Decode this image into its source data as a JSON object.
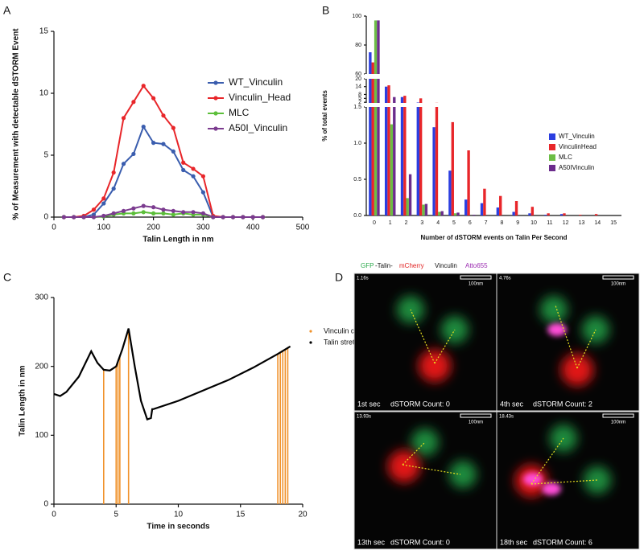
{
  "panel_labels": [
    "A",
    "B",
    "C",
    "D"
  ],
  "chart_data": [
    {
      "type": "line",
      "xlabel": "Talin Length in nm",
      "ylabel": "% of Measurement with detectable dSTORM Event",
      "x": [
        20,
        40,
        60,
        80,
        100,
        120,
        140,
        160,
        180,
        200,
        220,
        240,
        260,
        280,
        300,
        320,
        340,
        360,
        380,
        400,
        420
      ],
      "series": [
        {
          "name": "WT_Vinculin",
          "color": "#3a5dae",
          "values": [
            0,
            0,
            0,
            0.2,
            1.1,
            2.3,
            4.3,
            5.1,
            7.3,
            6.0,
            5.9,
            5.3,
            3.8,
            3.3,
            2.0,
            0,
            0,
            0,
            0,
            0,
            0
          ]
        },
        {
          "name": "Vinculin_Head",
          "color": "#e8262a",
          "values": [
            0,
            0,
            0.1,
            0.6,
            1.5,
            3.6,
            8.0,
            9.3,
            10.6,
            9.6,
            8.2,
            7.2,
            4.4,
            3.9,
            3.3,
            0.1,
            0,
            0,
            0,
            0,
            0
          ]
        },
        {
          "name": "MLC",
          "color": "#5cbf3a",
          "values": [
            0,
            0,
            0,
            0,
            0.05,
            0.2,
            0.3,
            0.3,
            0.4,
            0.3,
            0.3,
            0.2,
            0.3,
            0.2,
            0.2,
            0,
            0,
            0,
            0,
            0,
            0
          ]
        },
        {
          "name": "A50I_Vinculin",
          "color": "#7b3b8f",
          "values": [
            0,
            0,
            0,
            0,
            0.1,
            0.3,
            0.5,
            0.7,
            0.9,
            0.8,
            0.6,
            0.5,
            0.4,
            0.4,
            0.3,
            0,
            0,
            0,
            0,
            0,
            0
          ]
        }
      ],
      "xlim": [
        0,
        500
      ],
      "xticks": [
        0,
        100,
        200,
        300,
        400,
        500
      ],
      "ylim": [
        0,
        15
      ],
      "yticks": [
        0,
        5,
        10,
        15
      ],
      "markers": true,
      "legend": "right",
      "grid": false
    },
    {
      "type": "bar",
      "xlabel": "Number of dSTORM events on Talin Per Second",
      "ylabel": "% of total events",
      "categories": [
        "0",
        "1",
        "2",
        "3",
        "4",
        "5",
        "6",
        "7",
        "8",
        "9",
        "10",
        "11",
        "12",
        "13",
        "14",
        "15"
      ],
      "series": [
        {
          "name": "WT_Vinculin",
          "color": "#2b3ee0",
          "values": [
            75,
            14,
            6,
            1.8,
            1.22,
            0.62,
            0.22,
            0.17,
            0.11,
            0.05,
            0.03,
            0.01,
            0.02,
            0,
            0,
            0
          ]
        },
        {
          "name": "VinculinHead",
          "color": "#e8262a",
          "values": [
            68,
            15,
            7,
            5,
            1.6,
            1.29,
            0.9,
            0.37,
            0.27,
            0.2,
            0.12,
            0.03,
            0.03,
            0.01,
            0.02,
            0
          ]
        },
        {
          "name": "MLC",
          "color": "#6cbd45",
          "values": [
            97,
            1.26,
            0.24,
            0.15,
            0.05,
            0.03,
            0,
            0,
            0,
            0,
            0,
            0,
            0,
            0,
            0,
            0
          ]
        },
        {
          "name": "A50IVinculin",
          "color": "#6b2c8c",
          "values": [
            97,
            6,
            0.57,
            0.16,
            0.06,
            0.04,
            0.01,
            0,
            0,
            0,
            0,
            0,
            0,
            0,
            0,
            0
          ]
        }
      ],
      "y_segments": [
        {
          "ylim": [
            0,
            1.5
          ],
          "yticks": [
            {
              "value": 0,
              "label": "0.0"
            },
            0.5,
            {
              "value": 1,
              "label": "1.0"
            },
            1.5
          ]
        },
        {
          "ylim": [
            1.5,
            20
          ],
          "yticks": [
            2,
            5,
            8,
            14,
            20
          ]
        },
        {
          "ylim": [
            60,
            100
          ],
          "yticks": [
            60,
            80,
            100
          ]
        }
      ],
      "legend": "right",
      "grid": false
    },
    {
      "type": "line",
      "xlabel": "Time in seconds",
      "ylabel": "Talin Length in nm",
      "series": [
        {
          "name": "Vinculin dSTORM Event",
          "color": "#f0922b",
          "style": "stems",
          "x": [
            4.0,
            5.0,
            5.15,
            5.3,
            6.0,
            18.0,
            18.2,
            18.4,
            18.6,
            18.8
          ],
          "values": [
            195,
            200,
            208,
            215,
            252,
            218,
            221,
            223,
            225,
            227
          ]
        },
        {
          "name": "Talin stretch",
          "color": "#000000",
          "style": "line",
          "x": [
            0,
            0.5,
            1,
            2,
            3,
            3.5,
            4,
            4.5,
            5,
            5.5,
            6,
            6.5,
            7,
            7.5,
            7.8,
            7.9,
            8,
            10,
            12,
            14,
            16,
            18,
            19
          ],
          "values": [
            160,
            157,
            163,
            185,
            222,
            205,
            195,
            194,
            200,
            225,
            255,
            200,
            150,
            123,
            125,
            138,
            138,
            150,
            165,
            180,
            198,
            218,
            229
          ]
        }
      ],
      "xlim": [
        0,
        20
      ],
      "xticks": [
        0,
        5,
        10,
        15,
        20
      ],
      "ylim": [
        0,
        300
      ],
      "yticks": [
        0,
        100,
        200,
        300
      ],
      "legend": "upper right",
      "grid": false
    }
  ],
  "image_panel": {
    "header": [
      "GFP",
      "-Talin-",
      "mCherry",
      "Vinculin",
      "Atto655"
    ],
    "tiles": [
      {
        "time": "1.16s",
        "scale": "100nm",
        "second": "1st sec",
        "count": "dSTORM Count: 0"
      },
      {
        "time": "4.76s",
        "scale": "100nm",
        "second": "4th sec",
        "count": "dSTORM Count: 2"
      },
      {
        "time": "13.93s",
        "scale": "100nm",
        "second": "13th sec",
        "count": "dSTORM Count: 0"
      },
      {
        "time": "18.43s",
        "scale": "100nm",
        "second": "18th sec",
        "count": "dSTORM Count: 6"
      }
    ]
  }
}
